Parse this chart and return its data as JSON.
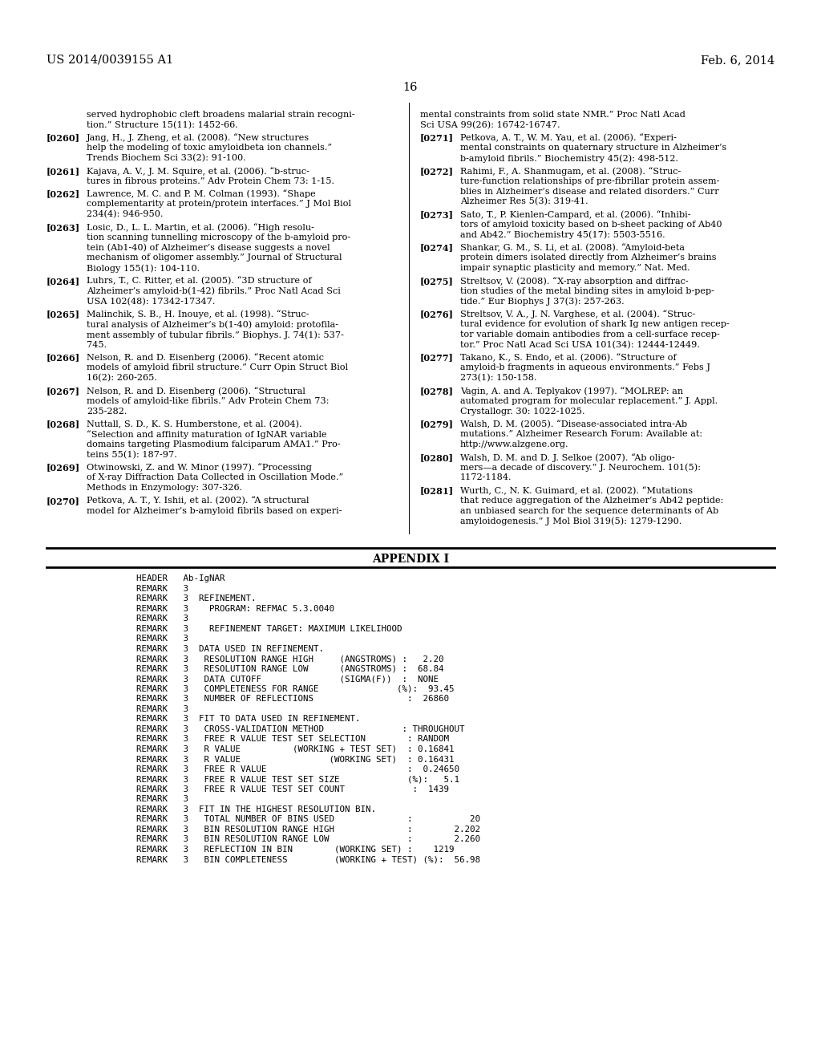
{
  "background_color": "#ffffff",
  "page_number": "16",
  "header_left": "US 2014/0039155 A1",
  "header_right": "Feb. 6, 2014",
  "appendix_title": "APPENDIX I",
  "appendix_lines": [
    "HEADER   Ab-IgNAR",
    "REMARK   3",
    "REMARK   3  REFINEMENT.",
    "REMARK   3    PROGRAM: REFMAC 5.3.0040",
    "REMARK   3",
    "REMARK   3    REFINEMENT TARGET: MAXIMUM LIKELIHOOD",
    "REMARK   3",
    "REMARK   3  DATA USED IN REFINEMENT.",
    "REMARK   3   RESOLUTION RANGE HIGH     (ANGSTROMS) :   2.20",
    "REMARK   3   RESOLUTION RANGE LOW      (ANGSTROMS) :  68.84",
    "REMARK   3   DATA CUTOFF               (SIGMA(F))  :  NONE",
    "REMARK   3   COMPLETENESS FOR RANGE               (%):  93.45",
    "REMARK   3   NUMBER OF REFLECTIONS                  :  26860",
    "REMARK   3",
    "REMARK   3  FIT TO DATA USED IN REFINEMENT.",
    "REMARK   3   CROSS-VALIDATION METHOD               : THROUGHOUT",
    "REMARK   3   FREE R VALUE TEST SET SELECTION        : RANDOM",
    "REMARK   3   R VALUE          (WORKING + TEST SET)  : 0.16841",
    "REMARK   3   R VALUE                 (WORKING SET)  : 0.16431",
    "REMARK   3   FREE R VALUE                           :  0.24650",
    "REMARK   3   FREE R VALUE TEST SET SIZE             (%):   5.1",
    "REMARK   3   FREE R VALUE TEST SET COUNT             :  1439",
    "REMARK   3",
    "REMARK   3  FIT IN THE HIGHEST RESOLUTION BIN.",
    "REMARK   3   TOTAL NUMBER OF BINS USED              :           20",
    "REMARK   3   BIN RESOLUTION RANGE HIGH              :        2.202",
    "REMARK   3   BIN RESOLUTION RANGE LOW               :        2.260",
    "REMARK   3   REFLECTION IN BIN        (WORKING SET) :    1219",
    "REMARK   3   BIN COMPLETENESS         (WORKING + TEST) (%):  56.98"
  ]
}
